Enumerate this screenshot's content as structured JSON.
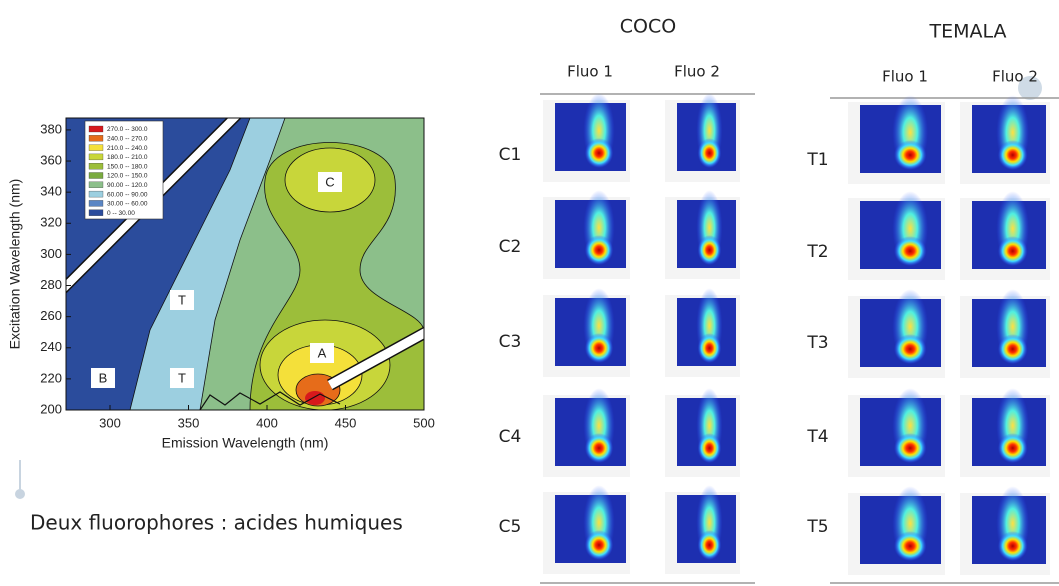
{
  "left_plot": {
    "y_label": "Excitation Wavelength (nm)",
    "x_label": "Emission Wavelength (nm)",
    "xticks": [
      300,
      350,
      400,
      450,
      500
    ],
    "yticks": [
      200,
      220,
      240,
      260,
      280,
      300,
      320,
      340,
      360,
      380
    ],
    "legend": [
      "270.0 -- 300.0",
      "240.0 -- 270.0",
      "210.0 -- 240.0",
      "180.0 -- 210.0",
      "150.0 -- 180.0",
      "120.0 -- 150.0",
      "90.00 -- 120.0",
      "60.00 -- 90.00",
      "30.00 -- 60.00",
      "0 -- 30.00"
    ],
    "region_labels": [
      "C",
      "T",
      "A",
      "B",
      "T"
    ]
  },
  "caption": "Deux fluorophores : acides humiques",
  "coco": {
    "title": "COCO",
    "columns": [
      "Fluo 1",
      "Fluo 2"
    ],
    "rows": [
      "C1",
      "C2",
      "C3",
      "C4",
      "C5"
    ]
  },
  "temala": {
    "title": "TEMALA",
    "columns": [
      "Fluo 1",
      "Fluo 2"
    ],
    "rows": [
      "T1",
      "T2",
      "T3",
      "T4",
      "T5"
    ]
  }
}
